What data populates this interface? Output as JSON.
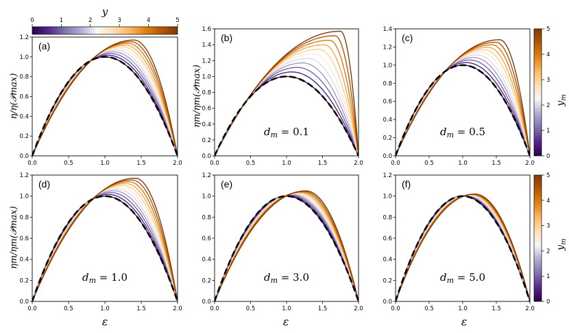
{
  "figure": {
    "top_colorbar": {
      "symbol": "y",
      "min": 0,
      "max": 5,
      "ticks": [
        "0",
        "1",
        "2",
        "3",
        "4",
        "5"
      ]
    },
    "side_colorbar": {
      "symbol": "y",
      "subscript": "m",
      "min": 0,
      "max": 5,
      "ticks": [
        "0",
        "1",
        "2",
        "3",
        "4",
        "5"
      ]
    },
    "colormap_stops": [
      "#2d004b",
      "#542788",
      "#8073ac",
      "#b2abd2",
      "#f7f7f7",
      "#fee0b6",
      "#fdb863",
      "#e08214",
      "#b35806",
      "#7f3b08"
    ],
    "xlabel": "ε",
    "ylabel_top": "η/η(𝒫max)",
    "ylabel_bottom": "ηm/ηm(𝒫max)"
  },
  "chart_data": [
    {
      "type": "line",
      "panel": "(a)",
      "annotation": "",
      "dm": null,
      "xlim": [
        0,
        2
      ],
      "ylim": [
        0,
        1.2
      ],
      "xticks": [
        "0.0",
        "0.5",
        "1.0",
        "1.5",
        "2.0"
      ],
      "yticks": [
        "0.0",
        "0.2",
        "0.4",
        "0.6",
        "0.8",
        "1.0",
        "1.2"
      ],
      "series_count": 11,
      "y_range": [
        0,
        5
      ],
      "first_curve_peak": [
        1.0,
        1.0
      ],
      "last_curve_peak": [
        1.4,
        1.17
      ],
      "dashed_reference": "black dashed curve peaking at (1.0, 1.0)"
    },
    {
      "type": "line",
      "panel": "(b)",
      "annotation": "d_m = 0.1",
      "dm": 0.1,
      "xlim": [
        0,
        2
      ],
      "ylim": [
        0,
        1.6
      ],
      "xticks": [
        "0.0",
        "0.5",
        "1.0",
        "1.5",
        "2.0"
      ],
      "yticks": [
        "0.0",
        "0.2",
        "0.4",
        "0.6",
        "0.8",
        "1.0",
        "1.2",
        "1.4",
        "1.6"
      ],
      "series_count": 11,
      "y_range": [
        0,
        5
      ],
      "first_curve_peak": [
        1.0,
        1.0
      ],
      "last_curve_peak": [
        1.75,
        1.57
      ],
      "dashed_reference": "black dashed curve peaking at (1.0, 1.0)"
    },
    {
      "type": "line",
      "panel": "(c)",
      "annotation": "d_m = 0.5",
      "dm": 0.5,
      "xlim": [
        0,
        2
      ],
      "ylim": [
        0,
        1.4
      ],
      "xticks": [
        "0.0",
        "0.5",
        "1.0",
        "1.5",
        "2.0"
      ],
      "yticks": [
        "0.0",
        "0.2",
        "0.4",
        "0.6",
        "0.8",
        "1.0",
        "1.2",
        "1.4"
      ],
      "series_count": 11,
      "y_range": [
        0,
        5
      ],
      "first_curve_peak": [
        1.0,
        1.0
      ],
      "last_curve_peak": [
        1.55,
        1.28
      ],
      "dashed_reference": "black dashed curve peaking at (1.0, 1.0)"
    },
    {
      "type": "line",
      "panel": "(d)",
      "annotation": "d_m = 1.0",
      "dm": 1.0,
      "xlim": [
        0,
        2
      ],
      "ylim": [
        0,
        1.2
      ],
      "xticks": [
        "0.0",
        "0.5",
        "1.0",
        "1.5",
        "2.0"
      ],
      "yticks": [
        "0.0",
        "0.2",
        "0.4",
        "0.6",
        "0.8",
        "1.0",
        "1.2"
      ],
      "series_count": 11,
      "y_range": [
        0,
        5
      ],
      "first_curve_peak": [
        1.0,
        1.0
      ],
      "last_curve_peak": [
        1.42,
        1.17
      ],
      "dashed_reference": "black dashed curve peaking at (1.0, 1.0)"
    },
    {
      "type": "line",
      "panel": "(e)",
      "annotation": "d_m = 3.0",
      "dm": 3.0,
      "xlim": [
        0,
        2
      ],
      "ylim": [
        0,
        1.2
      ],
      "xticks": [
        "0.0",
        "0.5",
        "1.0",
        "1.5",
        "2.0"
      ],
      "yticks": [
        "0.0",
        "0.2",
        "0.4",
        "0.6",
        "0.8",
        "1.0",
        "1.2"
      ],
      "series_count": 11,
      "y_range": [
        0,
        5
      ],
      "first_curve_peak": [
        1.0,
        1.0
      ],
      "last_curve_peak": [
        1.27,
        1.05
      ],
      "dashed_reference": "black dashed curve peaking at (1.0, 1.0)"
    },
    {
      "type": "line",
      "panel": "(f)",
      "annotation": "d_m = 5.0",
      "dm": 5.0,
      "xlim": [
        0,
        2
      ],
      "ylim": [
        0,
        1.2
      ],
      "xticks": [
        "0.0",
        "0.5",
        "1.0",
        "1.5",
        "2.0"
      ],
      "yticks": [
        "0.0",
        "0.2",
        "0.4",
        "0.6",
        "0.8",
        "1.0",
        "1.2"
      ],
      "series_count": 11,
      "y_range": [
        0,
        5
      ],
      "first_curve_peak": [
        1.0,
        1.0
      ],
      "last_curve_peak": [
        1.18,
        1.02
      ],
      "dashed_reference": "black dashed curve peaking at (1.0, 1.0)"
    }
  ]
}
